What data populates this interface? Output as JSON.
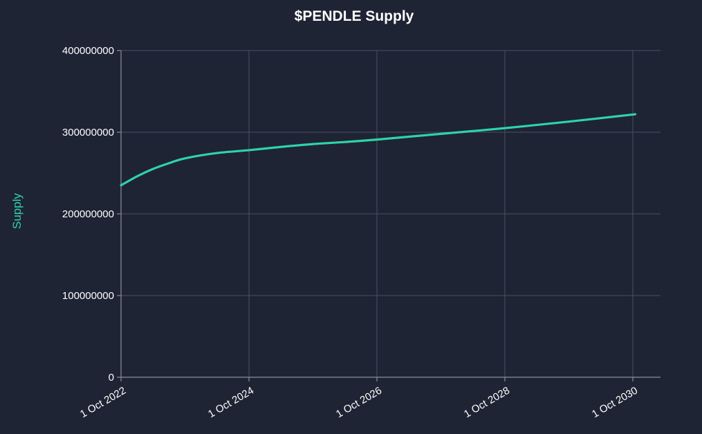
{
  "chart_data": {
    "type": "line",
    "title": "$PENDLE Supply",
    "xlabel": "",
    "ylabel": "Supply",
    "ylim": [
      0,
      400000000
    ],
    "xlim": [
      "2022-10-01",
      "2030-10-15"
    ],
    "grid": true,
    "x_ticks": [
      "1 Oct 2022",
      "1 Oct 2024",
      "1 Oct 2026",
      "1 Oct 2028",
      "1 Oct 2030"
    ],
    "y_ticks": [
      "0",
      "100000000",
      "200000000",
      "300000000",
      "400000000"
    ],
    "series": [
      {
        "color": "#2fd3a9",
        "points": [
          {
            "x": "2022-10-01",
            "y": 235000000
          },
          {
            "x": "2023-01-01",
            "y": 246000000
          },
          {
            "x": "2023-04-01",
            "y": 255000000
          },
          {
            "x": "2023-07-01",
            "y": 262000000
          },
          {
            "x": "2023-10-01",
            "y": 268000000
          },
          {
            "x": "2024-04-01",
            "y": 274500000
          },
          {
            "x": "2024-10-01",
            "y": 278000000
          },
          {
            "x": "2025-04-01",
            "y": 282000000
          },
          {
            "x": "2025-10-01",
            "y": 285500000
          },
          {
            "x": "2026-04-01",
            "y": 288000000
          },
          {
            "x": "2026-10-01",
            "y": 291000000
          },
          {
            "x": "2027-10-01",
            "y": 298000000
          },
          {
            "x": "2028-10-01",
            "y": 305000000
          },
          {
            "x": "2029-10-01",
            "y": 313000000
          },
          {
            "x": "2030-10-15",
            "y": 322000000
          }
        ]
      }
    ]
  },
  "colors": {
    "background": "#1f2435",
    "line": "#2fd3a9",
    "ylabel": "#2fd3a9",
    "grid": "#4a5064"
  }
}
